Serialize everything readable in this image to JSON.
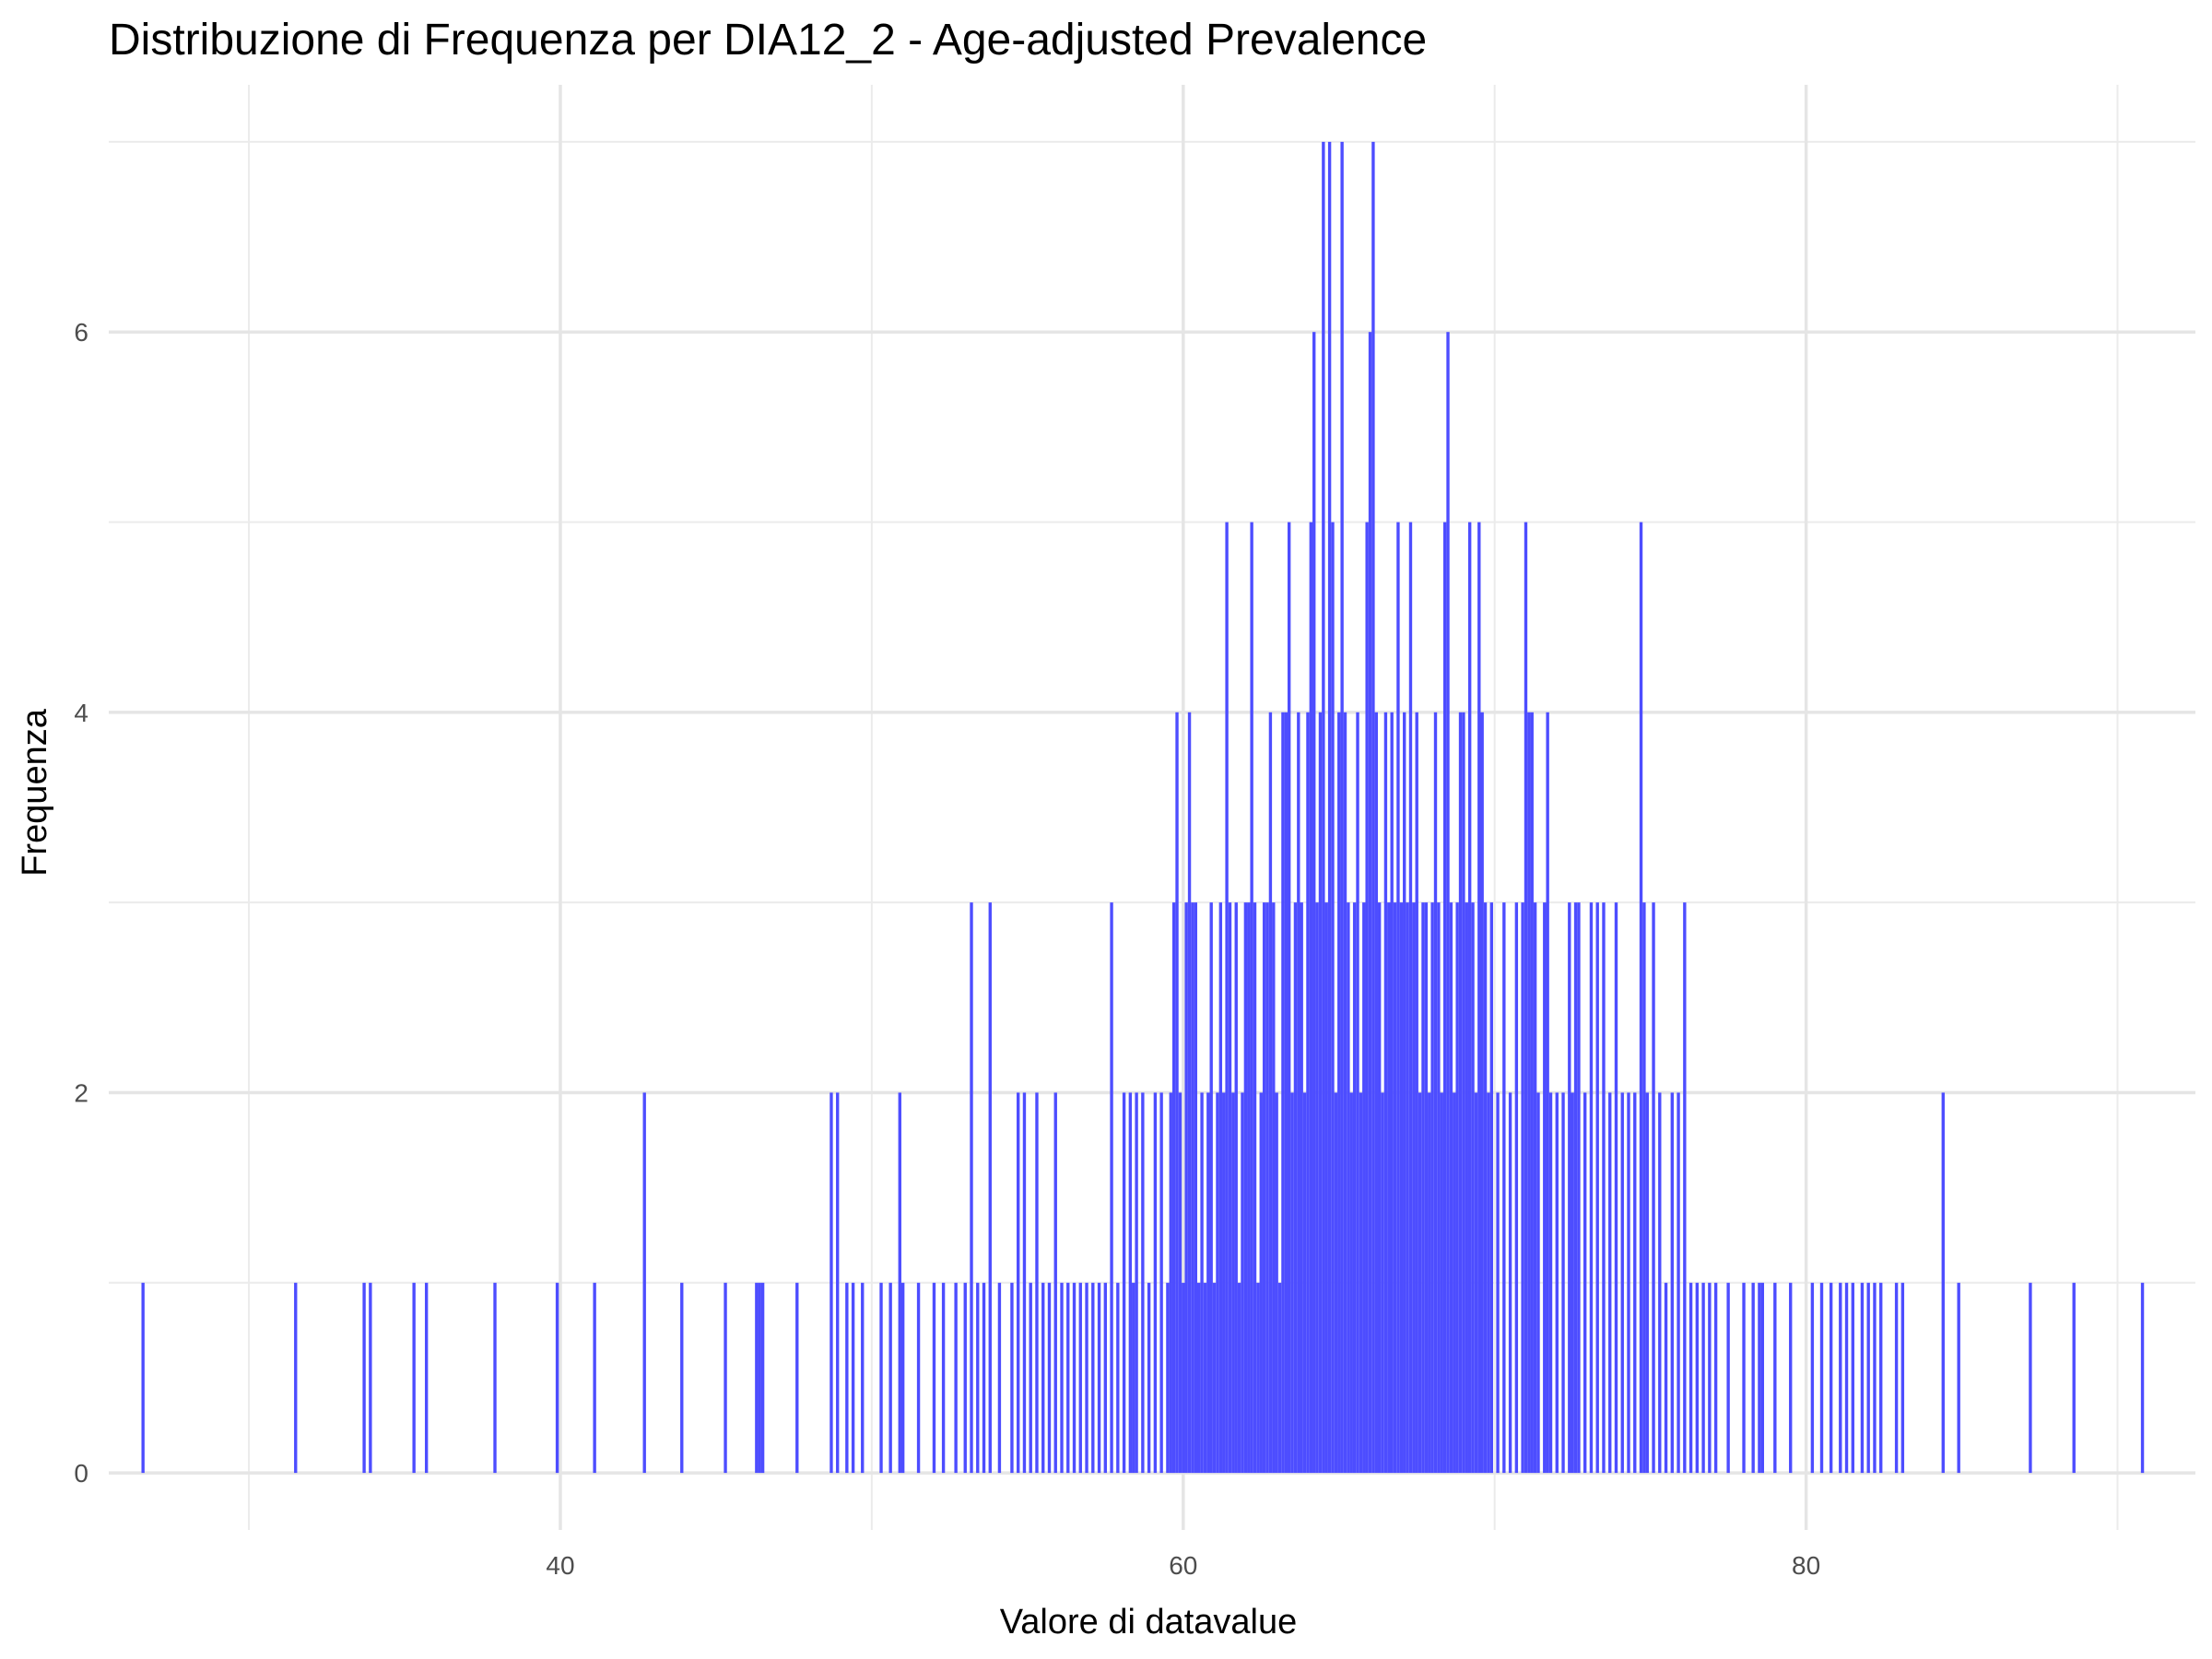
{
  "chart_data": {
    "type": "bar",
    "subtype": "histogram",
    "title": "Distribuzione di Frequenza per DIA12_2 - Age-adjusted Prevalence",
    "xlabel": "Valore di datavalue",
    "ylabel": "Frequenza",
    "xlim": [
      25.5,
      92.5
    ],
    "ylim": [
      -0.3,
      7.3
    ],
    "x_ticks": [
      40,
      60,
      80
    ],
    "y_ticks": [
      0,
      2,
      4,
      6
    ],
    "grid": true,
    "bar_color": "#4d4dff",
    "bar_width": 0.1,
    "points": [
      [
        26.6,
        1
      ],
      [
        31.5,
        1
      ],
      [
        33.7,
        1
      ],
      [
        33.9,
        1
      ],
      [
        35.3,
        1
      ],
      [
        35.7,
        1
      ],
      [
        37.9,
        1
      ],
      [
        39.9,
        1
      ],
      [
        41.1,
        1
      ],
      [
        42.7,
        2
      ],
      [
        43.9,
        1
      ],
      [
        45.3,
        1
      ],
      [
        46.3,
        1
      ],
      [
        46.4,
        1
      ],
      [
        46.5,
        1
      ],
      [
        47.6,
        1
      ],
      [
        48.7,
        2
      ],
      [
        48.9,
        2
      ],
      [
        49.2,
        1
      ],
      [
        49.4,
        1
      ],
      [
        49.7,
        1
      ],
      [
        50.3,
        1
      ],
      [
        50.6,
        1
      ],
      [
        50.9,
        2
      ],
      [
        51.0,
        1
      ],
      [
        51.5,
        1
      ],
      [
        52.0,
        1
      ],
      [
        52.3,
        1
      ],
      [
        52.7,
        1
      ],
      [
        53.0,
        1
      ],
      [
        53.2,
        3
      ],
      [
        53.4,
        1
      ],
      [
        53.6,
        1
      ],
      [
        53.8,
        3
      ],
      [
        54.1,
        1
      ],
      [
        54.5,
        1
      ],
      [
        54.7,
        2
      ],
      [
        54.9,
        2
      ],
      [
        55.1,
        1
      ],
      [
        55.3,
        2
      ],
      [
        55.5,
        1
      ],
      [
        55.7,
        1
      ],
      [
        55.9,
        2
      ],
      [
        56.1,
        1
      ],
      [
        56.3,
        1
      ],
      [
        56.5,
        1
      ],
      [
        56.7,
        1
      ],
      [
        56.9,
        1
      ],
      [
        57.1,
        1
      ],
      [
        57.3,
        1
      ],
      [
        57.5,
        1
      ],
      [
        57.7,
        3
      ],
      [
        57.9,
        1
      ],
      [
        58.1,
        2
      ],
      [
        58.3,
        2
      ],
      [
        58.4,
        1
      ],
      [
        58.5,
        2
      ],
      [
        58.7,
        2
      ],
      [
        58.9,
        1
      ],
      [
        59.1,
        2
      ],
      [
        59.3,
        2
      ],
      [
        59.5,
        1
      ],
      [
        59.6,
        2
      ],
      [
        59.7,
        3
      ],
      [
        59.8,
        4
      ],
      [
        59.9,
        2
      ],
      [
        60.0,
        1
      ],
      [
        60.1,
        3
      ],
      [
        60.2,
        4
      ],
      [
        60.3,
        3
      ],
      [
        60.4,
        3
      ],
      [
        60.5,
        1
      ],
      [
        60.6,
        2
      ],
      [
        60.7,
        1
      ],
      [
        60.8,
        2
      ],
      [
        60.9,
        3
      ],
      [
        61.0,
        1
      ],
      [
        61.1,
        2
      ],
      [
        61.2,
        3
      ],
      [
        61.3,
        2
      ],
      [
        61.4,
        5
      ],
      [
        61.5,
        3
      ],
      [
        61.6,
        2
      ],
      [
        61.7,
        3
      ],
      [
        61.8,
        1
      ],
      [
        61.9,
        2
      ],
      [
        62.0,
        3
      ],
      [
        62.1,
        3
      ],
      [
        62.2,
        5
      ],
      [
        62.3,
        3
      ],
      [
        62.4,
        1
      ],
      [
        62.5,
        2
      ],
      [
        62.6,
        3
      ],
      [
        62.7,
        3
      ],
      [
        62.8,
        4
      ],
      [
        62.9,
        3
      ],
      [
        63.0,
        2
      ],
      [
        63.1,
        1
      ],
      [
        63.2,
        4
      ],
      [
        63.3,
        4
      ],
      [
        63.4,
        5
      ],
      [
        63.5,
        2
      ],
      [
        63.6,
        3
      ],
      [
        63.7,
        4
      ],
      [
        63.8,
        3
      ],
      [
        63.9,
        2
      ],
      [
        64.0,
        4
      ],
      [
        64.1,
        5
      ],
      [
        64.2,
        6
      ],
      [
        64.3,
        3
      ],
      [
        64.4,
        4
      ],
      [
        64.5,
        7
      ],
      [
        64.6,
        3
      ],
      [
        64.7,
        7
      ],
      [
        64.8,
        5
      ],
      [
        64.9,
        2
      ],
      [
        65.0,
        4
      ],
      [
        65.1,
        7
      ],
      [
        65.2,
        4
      ],
      [
        65.3,
        3
      ],
      [
        65.4,
        2
      ],
      [
        65.5,
        3
      ],
      [
        65.6,
        4
      ],
      [
        65.7,
        2
      ],
      [
        65.8,
        3
      ],
      [
        65.9,
        5
      ],
      [
        66.0,
        6
      ],
      [
        66.1,
        7
      ],
      [
        66.2,
        4
      ],
      [
        66.3,
        3
      ],
      [
        66.4,
        2
      ],
      [
        66.5,
        4
      ],
      [
        66.6,
        3
      ],
      [
        66.7,
        4
      ],
      [
        66.8,
        3
      ],
      [
        66.9,
        5
      ],
      [
        67.0,
        3
      ],
      [
        67.1,
        4
      ],
      [
        67.2,
        3
      ],
      [
        67.3,
        5
      ],
      [
        67.4,
        3
      ],
      [
        67.5,
        4
      ],
      [
        67.6,
        2
      ],
      [
        67.7,
        3
      ],
      [
        67.8,
        3
      ],
      [
        67.9,
        2
      ],
      [
        68.0,
        3
      ],
      [
        68.1,
        4
      ],
      [
        68.2,
        3
      ],
      [
        68.3,
        2
      ],
      [
        68.4,
        5
      ],
      [
        68.5,
        6
      ],
      [
        68.6,
        3
      ],
      [
        68.7,
        2
      ],
      [
        68.8,
        3
      ],
      [
        68.9,
        4
      ],
      [
        69.0,
        4
      ],
      [
        69.1,
        3
      ],
      [
        69.2,
        5
      ],
      [
        69.3,
        3
      ],
      [
        69.4,
        2
      ],
      [
        69.5,
        5
      ],
      [
        69.6,
        4
      ],
      [
        69.7,
        3
      ],
      [
        69.8,
        2
      ],
      [
        69.9,
        3
      ],
      [
        70.1,
        2
      ],
      [
        70.3,
        3
      ],
      [
        70.5,
        2
      ],
      [
        70.7,
        3
      ],
      [
        70.9,
        3
      ],
      [
        71.0,
        5
      ],
      [
        71.1,
        4
      ],
      [
        71.2,
        4
      ],
      [
        71.3,
        3
      ],
      [
        71.4,
        2
      ],
      [
        71.6,
        3
      ],
      [
        71.7,
        4
      ],
      [
        71.8,
        2
      ],
      [
        72.0,
        2
      ],
      [
        72.2,
        2
      ],
      [
        72.4,
        3
      ],
      [
        72.5,
        2
      ],
      [
        72.6,
        3
      ],
      [
        72.7,
        3
      ],
      [
        72.9,
        2
      ],
      [
        73.1,
        3
      ],
      [
        73.3,
        3
      ],
      [
        73.5,
        3
      ],
      [
        73.7,
        2
      ],
      [
        73.9,
        3
      ],
      [
        74.1,
        2
      ],
      [
        74.3,
        2
      ],
      [
        74.5,
        2
      ],
      [
        74.7,
        5
      ],
      [
        74.8,
        3
      ],
      [
        74.9,
        2
      ],
      [
        75.1,
        3
      ],
      [
        75.3,
        2
      ],
      [
        75.5,
        1
      ],
      [
        75.7,
        2
      ],
      [
        75.9,
        2
      ],
      [
        76.1,
        3
      ],
      [
        76.3,
        1
      ],
      [
        76.5,
        1
      ],
      [
        76.7,
        1
      ],
      [
        76.9,
        1
      ],
      [
        77.1,
        1
      ],
      [
        77.5,
        1
      ],
      [
        78.0,
        1
      ],
      [
        78.3,
        1
      ],
      [
        78.5,
        1
      ],
      [
        78.6,
        1
      ],
      [
        79.0,
        1
      ],
      [
        79.5,
        1
      ],
      [
        80.2,
        1
      ],
      [
        80.5,
        1
      ],
      [
        80.8,
        1
      ],
      [
        81.1,
        1
      ],
      [
        81.3,
        1
      ],
      [
        81.5,
        1
      ],
      [
        81.8,
        1
      ],
      [
        82.0,
        1
      ],
      [
        82.2,
        1
      ],
      [
        82.4,
        1
      ],
      [
        82.9,
        1
      ],
      [
        83.1,
        1
      ],
      [
        84.4,
        2
      ],
      [
        84.9,
        1
      ],
      [
        87.2,
        1
      ],
      [
        88.6,
        1
      ],
      [
        90.8,
        1
      ]
    ]
  }
}
